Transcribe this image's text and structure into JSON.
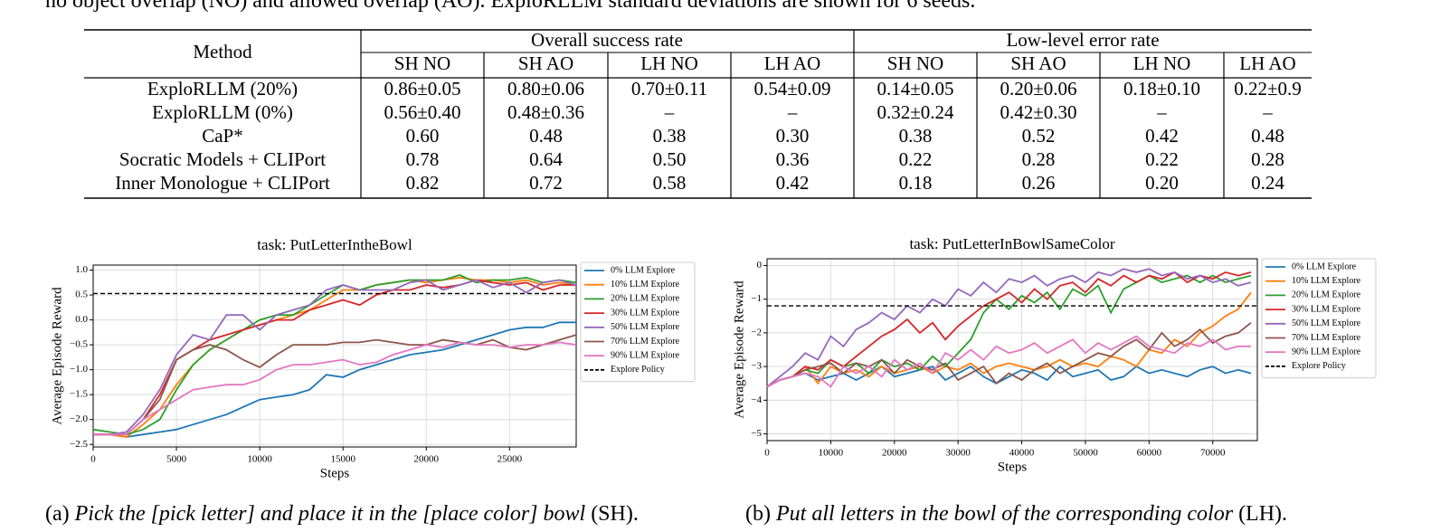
{
  "top_text": "no object overlap (NO) and allowed overlap (AO). ExploRLLM standard deviations are shown for 6 seeds.",
  "table": {
    "method": "Method",
    "groups": [
      "Overall success rate",
      "Low-level error rate"
    ],
    "columns": [
      "SH NO",
      "SH AO",
      "LH NO",
      "LH AO",
      "SH NO",
      "SH AO",
      "LH NO",
      "LH AO"
    ],
    "rows": [
      [
        "ExploRLLM (20%)",
        "0.86±0.05",
        "0.80±0.06",
        "0.70±0.11",
        "0.54±0.09",
        "0.14±0.05",
        "0.20±0.06",
        "0.18±0.10",
        "0.22±0.9"
      ],
      [
        "ExploRLLM (0%)",
        "0.56±0.40",
        "0.48±0.36",
        "–",
        "–",
        "0.32±0.24",
        "0.42±0.30",
        "–",
        "–"
      ],
      [
        "CaP*",
        "0.60",
        "0.48",
        "0.38",
        "0.30",
        "0.38",
        "0.52",
        "0.42",
        "0.48"
      ],
      [
        "Socratic Models + CLIPort",
        "0.78",
        "0.64",
        "0.50",
        "0.36",
        "0.22",
        "0.28",
        "0.22",
        "0.28"
      ],
      [
        "Inner Monologue + CLIPort",
        "0.82",
        "0.72",
        "0.58",
        "0.42",
        "0.18",
        "0.26",
        "0.20",
        "0.24"
      ]
    ]
  },
  "chart_data": [
    {
      "type": "line",
      "title": "task: PutLetterIntheBowl",
      "x_label": "Steps",
      "y_label": "Average Episode Reward",
      "grid": true,
      "legend": "outside right",
      "x": [
        0,
        1000,
        2000,
        3000,
        4000,
        5000,
        6000,
        7000,
        8000,
        9000,
        10000,
        11000,
        12000,
        13000,
        14000,
        15000,
        16000,
        17000,
        18000,
        19000,
        20000,
        21000,
        22000,
        23000,
        24000,
        25000,
        26000,
        27000,
        28000,
        29000
      ],
      "xlim": [
        0,
        29000
      ],
      "xticks": [
        0,
        5000,
        10000,
        15000,
        20000,
        25000
      ],
      "ylim": [
        -2.55,
        1.1
      ],
      "yticks": [
        {
          "value": 1.0,
          "label": "1.0"
        },
        {
          "value": 0.5,
          "label": "0.5"
        },
        {
          "value": 0.0,
          "label": "0.0"
        },
        {
          "value": -0.5,
          "label": "−0.5"
        },
        {
          "value": -1.0,
          "label": "−1.0"
        },
        {
          "value": -1.5,
          "label": "−1.5"
        },
        {
          "value": -2.0,
          "label": "−2.0"
        },
        {
          "value": -2.5,
          "label": "−2.5"
        }
      ],
      "series": [
        {
          "name": "0% LLM Explore",
          "color": "#1f77b4",
          "values": [
            -2.3,
            -2.3,
            -2.35,
            -2.3,
            -2.25,
            -2.2,
            -2.1,
            -2.0,
            -1.9,
            -1.75,
            -1.6,
            -1.55,
            -1.5,
            -1.4,
            -1.1,
            -1.15,
            -1.0,
            -0.9,
            -0.8,
            -0.7,
            -0.65,
            -0.6,
            -0.5,
            -0.4,
            -0.3,
            -0.2,
            -0.15,
            -0.15,
            -0.05,
            -0.05
          ]
        },
        {
          "name": "10% LLM Explore",
          "color": "#ff7f0e",
          "values": [
            -2.3,
            -2.3,
            -2.35,
            -2.1,
            -1.8,
            -1.3,
            -0.9,
            -0.6,
            -0.4,
            -0.2,
            -0.1,
            0.0,
            0.1,
            0.2,
            0.4,
            0.6,
            0.6,
            0.7,
            0.75,
            0.8,
            0.75,
            0.8,
            0.85,
            0.8,
            0.8,
            0.75,
            0.8,
            0.7,
            0.75,
            0.7
          ]
        },
        {
          "name": "20% LLM Explore",
          "color": "#2ca02c",
          "values": [
            -2.2,
            -2.25,
            -2.3,
            -2.2,
            -2.0,
            -1.4,
            -0.9,
            -0.6,
            -0.4,
            -0.2,
            0.0,
            0.1,
            0.1,
            0.3,
            0.5,
            0.7,
            0.6,
            0.7,
            0.75,
            0.8,
            0.8,
            0.8,
            0.9,
            0.75,
            0.8,
            0.8,
            0.85,
            0.75,
            0.8,
            0.75
          ]
        },
        {
          "name": "30% LLM Explore",
          "color": "#d62728",
          "values": [
            -2.3,
            -2.3,
            -2.3,
            -2.0,
            -1.5,
            -0.8,
            -0.6,
            -0.4,
            -0.3,
            -0.2,
            -0.1,
            0.0,
            0.0,
            0.2,
            0.3,
            0.4,
            0.3,
            0.5,
            0.6,
            0.6,
            0.7,
            0.65,
            0.7,
            0.8,
            0.75,
            0.7,
            0.75,
            0.6,
            0.7,
            0.7
          ]
        },
        {
          "name": "50% LLM Explore",
          "color": "#9467bd",
          "values": [
            -2.3,
            -2.3,
            -2.25,
            -1.9,
            -1.4,
            -0.7,
            -0.3,
            -0.4,
            0.1,
            0.1,
            -0.2,
            0.1,
            0.2,
            0.3,
            0.6,
            0.7,
            0.6,
            0.6,
            0.6,
            0.75,
            0.8,
            0.6,
            0.7,
            0.8,
            0.65,
            0.75,
            0.55,
            0.75,
            0.8,
            0.7
          ]
        },
        {
          "name": "70% LLM Explore",
          "color": "#8c564b",
          "values": [
            -2.3,
            -2.3,
            -2.3,
            -2.0,
            -1.6,
            -0.8,
            -0.6,
            -0.5,
            -0.6,
            -0.8,
            -0.95,
            -0.7,
            -0.5,
            -0.5,
            -0.5,
            -0.45,
            -0.45,
            -0.4,
            -0.45,
            -0.5,
            -0.5,
            -0.4,
            -0.45,
            -0.5,
            -0.4,
            -0.55,
            -0.6,
            -0.5,
            -0.4,
            -0.3
          ]
        },
        {
          "name": "90% LLM Explore",
          "color": "#e377c2",
          "values": [
            -2.3,
            -2.3,
            -2.3,
            -2.0,
            -1.8,
            -1.6,
            -1.4,
            -1.35,
            -1.3,
            -1.3,
            -1.2,
            -1.0,
            -0.9,
            -0.9,
            -0.85,
            -0.8,
            -0.9,
            -0.85,
            -0.7,
            -0.6,
            -0.5,
            -0.55,
            -0.45,
            -0.5,
            -0.5,
            -0.55,
            -0.5,
            -0.5,
            -0.45,
            -0.5
          ]
        }
      ],
      "hlines": [
        {
          "name": "Explore Policy",
          "value": 0.53,
          "color": "#000000",
          "style": "dashed"
        }
      ]
    },
    {
      "type": "line",
      "title": "task: PutLetterInBowlSameColor",
      "x_label": "Steps",
      "y_label": "Average Episode Reward",
      "grid": true,
      "legend": "outside right",
      "x": [
        0,
        2000,
        4000,
        6000,
        8000,
        10000,
        12000,
        14000,
        16000,
        18000,
        20000,
        22000,
        24000,
        26000,
        28000,
        30000,
        32000,
        34000,
        36000,
        38000,
        40000,
        42000,
        44000,
        46000,
        48000,
        50000,
        52000,
        54000,
        56000,
        58000,
        60000,
        62000,
        64000,
        66000,
        68000,
        70000,
        72000,
        74000,
        76000
      ],
      "xlim": [
        0,
        77000
      ],
      "xticks": [
        0,
        10000,
        20000,
        30000,
        40000,
        50000,
        60000,
        70000
      ],
      "ylim": [
        -5.2,
        0.2
      ],
      "yticks": [
        0,
        {
          "value": -1,
          "label": "−1"
        },
        {
          "value": -2,
          "label": "−2"
        },
        {
          "value": -3,
          "label": "−3"
        },
        {
          "value": -4,
          "label": "−4"
        },
        {
          "value": -5,
          "label": "−5"
        }
      ],
      "series": [
        {
          "name": "0% LLM Explore",
          "color": "#1f77b4",
          "values": [
            -3.6,
            -3.4,
            -3.3,
            -3.2,
            -3.4,
            -3.3,
            -3.2,
            -3.4,
            -3.2,
            -3.0,
            -3.3,
            -3.2,
            -3.1,
            -3.0,
            -3.4,
            -3.2,
            -3.0,
            -3.3,
            -3.5,
            -3.3,
            -3.1,
            -3.2,
            -3.4,
            -3.0,
            -3.3,
            -3.2,
            -3.1,
            -3.4,
            -3.3,
            -3.0,
            -3.2,
            -3.1,
            -3.2,
            -3.3,
            -3.1,
            -3.0,
            -3.2,
            -3.1,
            -3.2
          ]
        },
        {
          "name": "10% LLM Explore",
          "color": "#ff7f0e",
          "values": [
            -3.6,
            -3.4,
            -3.3,
            -3.0,
            -3.5,
            -3.0,
            -3.2,
            -3.1,
            -3.3,
            -3.0,
            -3.2,
            -3.1,
            -3.0,
            -3.2,
            -3.0,
            -3.1,
            -2.9,
            -3.2,
            -3.0,
            -2.9,
            -3.0,
            -3.1,
            -3.0,
            -2.8,
            -3.0,
            -2.9,
            -3.0,
            -2.7,
            -2.8,
            -3.0,
            -2.5,
            -2.6,
            -2.2,
            -2.4,
            -2.0,
            -1.8,
            -1.5,
            -1.3,
            -0.8
          ]
        },
        {
          "name": "20% LLM Explore",
          "color": "#2ca02c",
          "values": [
            -3.6,
            -3.4,
            -3.3,
            -3.1,
            -3.2,
            -2.8,
            -3.0,
            -2.9,
            -3.2,
            -2.8,
            -3.0,
            -2.9,
            -3.1,
            -2.7,
            -3.0,
            -2.6,
            -2.2,
            -1.4,
            -1.0,
            -1.3,
            -0.9,
            -1.1,
            -0.8,
            -1.3,
            -0.7,
            -0.9,
            -0.6,
            -1.4,
            -0.7,
            -0.5,
            -0.3,
            -0.5,
            -0.4,
            -0.3,
            -0.5,
            -0.3,
            -0.5,
            -0.4,
            -0.3
          ]
        },
        {
          "name": "30% LLM Explore",
          "color": "#d62728",
          "values": [
            -3.6,
            -3.4,
            -3.3,
            -3.0,
            -3.1,
            -2.8,
            -3.0,
            -2.7,
            -2.4,
            -2.1,
            -1.9,
            -1.6,
            -2.0,
            -1.7,
            -2.2,
            -1.8,
            -1.5,
            -1.2,
            -1.0,
            -0.8,
            -1.1,
            -0.7,
            -1.0,
            -0.6,
            -0.5,
            -0.8,
            -0.4,
            -0.6,
            -0.3,
            -0.5,
            -0.3,
            -0.4,
            -0.2,
            -0.5,
            -0.3,
            -0.4,
            -0.2,
            -0.3,
            -0.2
          ]
        },
        {
          "name": "50% LLM Explore",
          "color": "#9467bd",
          "values": [
            -3.6,
            -3.3,
            -3.0,
            -2.6,
            -2.8,
            -2.1,
            -2.4,
            -1.9,
            -1.7,
            -1.4,
            -1.6,
            -1.2,
            -1.4,
            -1.0,
            -1.2,
            -0.7,
            -0.9,
            -0.5,
            -0.8,
            -0.4,
            -0.5,
            -0.3,
            -0.6,
            -0.4,
            -0.3,
            -0.5,
            -0.2,
            -0.3,
            -0.1,
            -0.2,
            -0.1,
            -0.3,
            -0.2,
            -0.4,
            -0.3,
            -0.5,
            -0.4,
            -0.6,
            -0.5
          ]
        },
        {
          "name": "70% LLM Explore",
          "color": "#8c564b",
          "values": [
            -3.6,
            -3.4,
            -3.3,
            -3.1,
            -3.0,
            -2.9,
            -3.2,
            -2.9,
            -3.0,
            -2.8,
            -3.2,
            -2.8,
            -3.0,
            -3.1,
            -2.9,
            -3.4,
            -3.2,
            -3.0,
            -3.5,
            -3.2,
            -3.4,
            -3.1,
            -2.9,
            -3.2,
            -3.0,
            -2.8,
            -2.6,
            -2.7,
            -2.4,
            -2.2,
            -2.5,
            -2.0,
            -2.4,
            -2.2,
            -1.9,
            -2.3,
            -2.1,
            -2.0,
            -1.7
          ]
        },
        {
          "name": "90% LLM Explore",
          "color": "#e377c2",
          "values": [
            -3.6,
            -3.4,
            -3.3,
            -3.2,
            -3.3,
            -3.6,
            -3.0,
            -3.2,
            -3.0,
            -3.3,
            -2.8,
            -3.1,
            -2.9,
            -3.2,
            -2.6,
            -2.8,
            -2.5,
            -2.8,
            -2.4,
            -2.6,
            -2.5,
            -2.3,
            -2.6,
            -2.4,
            -2.2,
            -2.6,
            -2.3,
            -2.5,
            -2.3,
            -2.1,
            -2.4,
            -2.5,
            -2.6,
            -2.3,
            -2.4,
            -2.2,
            -2.5,
            -2.4,
            -2.4
          ]
        }
      ],
      "hlines": [
        {
          "name": "Explore Policy",
          "value": -1.2,
          "color": "#000000",
          "style": "dashed"
        }
      ]
    }
  ],
  "captions": [
    {
      "label": "(a)",
      "text": "Pick the [pick letter] and place it in the [place color] bowl",
      "suffix": "(SH)."
    },
    {
      "label": "(b)",
      "text": "Put all letters in the bowl of the corresponding color",
      "suffix": "(LH)."
    }
  ]
}
